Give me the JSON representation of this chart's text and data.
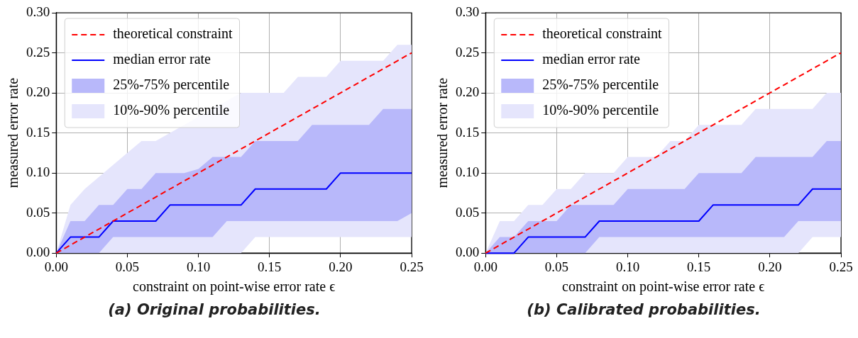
{
  "chart_data": [
    {
      "type": "line",
      "xlabel": "constraint on point-wise error rate ϵ",
      "ylabel": "measured error rate",
      "annotations": [
        "(a) Original probabilities."
      ],
      "xlim": [
        0,
        0.25
      ],
      "ylim": [
        0,
        0.3
      ],
      "xticks": [
        {
          "value": 0,
          "label": "0.00"
        },
        {
          "value": 0.05,
          "label": "0.05"
        },
        {
          "value": 0.1,
          "label": "0.10"
        },
        {
          "value": 0.15,
          "label": "0.15"
        },
        {
          "value": 0.2,
          "label": "0.20"
        },
        {
          "value": 0.25,
          "label": "0.25"
        }
      ],
      "yticks": [
        {
          "value": 0,
          "label": "0.00"
        },
        {
          "value": 0.05,
          "label": "0.05"
        },
        {
          "value": 0.1,
          "label": "0.10"
        },
        {
          "value": 0.15,
          "label": "0.15"
        },
        {
          "value": 0.2,
          "label": "0.20"
        },
        {
          "value": 0.25,
          "label": "0.25"
        },
        {
          "value": 0.3,
          "label": "0.30"
        }
      ],
      "grid": true,
      "legend": "top left",
      "marker": "none",
      "x": [
        0,
        0.01,
        0.02,
        0.03,
        0.04,
        0.05,
        0.06,
        0.07,
        0.08,
        0.09,
        0.1,
        0.11,
        0.12,
        0.13,
        0.14,
        0.15,
        0.16,
        0.17,
        0.18,
        0.19,
        0.2,
        0.21,
        0.22,
        0.23,
        0.24,
        0.25
      ],
      "series": [
        {
          "name": "theoretical constraint",
          "type": "line",
          "line_style": "dashed",
          "color": "#ff0000",
          "values": [
            0,
            0.01,
            0.02,
            0.03,
            0.04,
            0.05,
            0.06,
            0.07,
            0.08,
            0.09,
            0.1,
            0.11,
            0.12,
            0.13,
            0.14,
            0.15,
            0.16,
            0.17,
            0.18,
            0.19,
            0.2,
            0.21,
            0.22,
            0.23,
            0.24,
            0.25
          ]
        },
        {
          "name": "median error rate",
          "type": "line",
          "line_style": "solid",
          "color": "#0000ff",
          "values": [
            0,
            0.02,
            0.02,
            0.02,
            0.04,
            0.04,
            0.04,
            0.04,
            0.06,
            0.06,
            0.06,
            0.06,
            0.06,
            0.06,
            0.08,
            0.08,
            0.08,
            0.08,
            0.08,
            0.08,
            0.1,
            0.1,
            0.1,
            0.1,
            0.1,
            0.1
          ]
        },
        {
          "name": "25%-75% percentile",
          "type": "area",
          "color": "#b8b8fa",
          "values": [
            null,
            null,
            null,
            null,
            null,
            null,
            null,
            null,
            null,
            null,
            null,
            null,
            null,
            null,
            null,
            null,
            null,
            null,
            null,
            null,
            null,
            null,
            null,
            null,
            null,
            null
          ],
          "lower": [
            0,
            0,
            0,
            0,
            0.02,
            0.02,
            0.02,
            0.02,
            0.02,
            0.02,
            0.02,
            0.02,
            0.04,
            0.04,
            0.04,
            0.04,
            0.04,
            0.04,
            0.04,
            0.04,
            0.04,
            0.04,
            0.04,
            0.04,
            0.04,
            0.05
          ],
          "upper": [
            0,
            0.04,
            0.04,
            0.06,
            0.06,
            0.08,
            0.08,
            0.1,
            0.1,
            0.1,
            0.105,
            0.12,
            0.12,
            0.12,
            0.14,
            0.14,
            0.14,
            0.14,
            0.16,
            0.16,
            0.16,
            0.16,
            0.16,
            0.18,
            0.18,
            0.18
          ]
        },
        {
          "name": "10%-90% percentile",
          "type": "area",
          "color": "#e5e5fc",
          "values": [
            null,
            null,
            null,
            null,
            null,
            null,
            null,
            null,
            null,
            null,
            null,
            null,
            null,
            null,
            null,
            null,
            null,
            null,
            null,
            null,
            null,
            null,
            null,
            null,
            null,
            null
          ],
          "lower": [
            0,
            0,
            0,
            0,
            0,
            0,
            0,
            0,
            null,
            null,
            null,
            null,
            null,
            0,
            0.02,
            0.02,
            0.02,
            0.02,
            0.02,
            0.02,
            0.02,
            0.02,
            0.02,
            0.02,
            0.02,
            0.02
          ],
          "upper": [
            0,
            0.06,
            0.08,
            0.095,
            0.11,
            0.125,
            0.14,
            0.14,
            null,
            null,
            null,
            null,
            null,
            0.2,
            0.2,
            0.2,
            0.2,
            0.22,
            0.22,
            0.22,
            0.24,
            0.24,
            0.24,
            0.24,
            0.26,
            0.26
          ]
        }
      ]
    },
    {
      "type": "line",
      "xlabel": "constraint on point-wise error rate ϵ",
      "ylabel": "measured error rate",
      "annotations": [
        "(b) Calibrated probabilities."
      ],
      "xlim": [
        0,
        0.25
      ],
      "ylim": [
        0,
        0.3
      ],
      "xticks": [
        {
          "value": 0,
          "label": "0.00"
        },
        {
          "value": 0.05,
          "label": "0.05"
        },
        {
          "value": 0.1,
          "label": "0.10"
        },
        {
          "value": 0.15,
          "label": "0.15"
        },
        {
          "value": 0.2,
          "label": "0.20"
        },
        {
          "value": 0.25,
          "label": "0.25"
        }
      ],
      "yticks": [
        {
          "value": 0,
          "label": "0.00"
        },
        {
          "value": 0.05,
          "label": "0.05"
        },
        {
          "value": 0.1,
          "label": "0.10"
        },
        {
          "value": 0.15,
          "label": "0.15"
        },
        {
          "value": 0.2,
          "label": "0.20"
        },
        {
          "value": 0.25,
          "label": "0.25"
        },
        {
          "value": 0.3,
          "label": "0.30"
        }
      ],
      "grid": true,
      "legend": "top left",
      "marker": "none",
      "x": [
        0,
        0.01,
        0.02,
        0.03,
        0.04,
        0.05,
        0.06,
        0.07,
        0.08,
        0.09,
        0.1,
        0.11,
        0.12,
        0.13,
        0.14,
        0.15,
        0.16,
        0.17,
        0.18,
        0.19,
        0.2,
        0.21,
        0.22,
        0.23,
        0.24,
        0.25
      ],
      "series": [
        {
          "name": "theoretical constraint",
          "type": "line",
          "line_style": "dashed",
          "color": "#ff0000",
          "values": [
            0,
            0.01,
            0.02,
            0.03,
            0.04,
            0.05,
            0.06,
            0.07,
            0.08,
            0.09,
            0.1,
            0.11,
            0.12,
            0.13,
            0.14,
            0.15,
            0.16,
            0.17,
            0.18,
            0.19,
            0.2,
            0.21,
            0.22,
            0.23,
            0.24,
            0.25
          ]
        },
        {
          "name": "median error rate",
          "type": "line",
          "line_style": "solid",
          "color": "#0000ff",
          "values": [
            0,
            0,
            0,
            0.02,
            0.02,
            0.02,
            0.02,
            0.02,
            0.04,
            0.04,
            0.04,
            0.04,
            0.04,
            0.04,
            0.04,
            0.04,
            0.06,
            0.06,
            0.06,
            0.06,
            0.06,
            0.06,
            0.06,
            0.08,
            0.08,
            0.08
          ]
        },
        {
          "name": "25%-75% percentile",
          "type": "area",
          "color": "#b8b8fa",
          "values": [
            null,
            null,
            null,
            null,
            null,
            null,
            null,
            null,
            null,
            null,
            null,
            null,
            null,
            null,
            null,
            null,
            null,
            null,
            null,
            null,
            null,
            null,
            null,
            null,
            null,
            null
          ],
          "lower": [
            0,
            0,
            0,
            0,
            0,
            0,
            0,
            0,
            0.02,
            0.02,
            0.02,
            0.02,
            0.02,
            0.02,
            0.02,
            0.02,
            0.02,
            0.02,
            0.02,
            0.02,
            0.02,
            0.02,
            0.04,
            0.04,
            0.04,
            0.04
          ],
          "upper": [
            0,
            0.02,
            0.02,
            0.04,
            0.04,
            0.04,
            0.06,
            0.06,
            0.06,
            0.06,
            0.08,
            0.08,
            0.08,
            0.08,
            0.08,
            0.1,
            0.1,
            0.1,
            0.1,
            0.12,
            0.12,
            0.12,
            0.12,
            0.12,
            0.14,
            0.14
          ]
        },
        {
          "name": "10%-90% percentile",
          "type": "area",
          "color": "#e5e5fc",
          "values": [
            null,
            null,
            null,
            null,
            null,
            null,
            null,
            null,
            null,
            null,
            null,
            null,
            null,
            null,
            null,
            null,
            null,
            null,
            null,
            null,
            null,
            null,
            null,
            null,
            null,
            null
          ],
          "lower": [
            0,
            0,
            0,
            0,
            0,
            0,
            0,
            0,
            0,
            0,
            0,
            0,
            0,
            0,
            0,
            0,
            0,
            0,
            0,
            0,
            0,
            0,
            0,
            0.02,
            0.02,
            0.02
          ],
          "upper": [
            0,
            0.04,
            0.04,
            0.06,
            0.06,
            0.08,
            0.08,
            0.1,
            0.1,
            0.1,
            0.12,
            0.12,
            0.12,
            0.14,
            0.14,
            0.16,
            0.16,
            0.16,
            0.16,
            0.18,
            0.18,
            0.18,
            0.18,
            0.18,
            0.2,
            0.2
          ]
        }
      ]
    }
  ]
}
